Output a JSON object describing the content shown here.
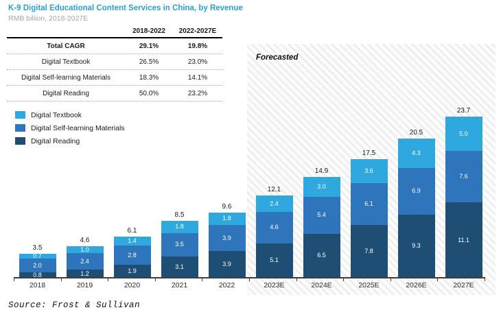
{
  "header": {
    "title": "K-9 Digital Educational Content Services in China, by Revenue",
    "subtitle": "RMB billion, 2018-2027E"
  },
  "cagr_table": {
    "columns": [
      "2018-2022",
      "2022-2027E"
    ],
    "rows": [
      {
        "label": "Total CAGR",
        "values": [
          "29.1%",
          "19.8%"
        ],
        "bold": true
      },
      {
        "label": "Digital Textbook",
        "values": [
          "26.5%",
          "23.0%"
        ],
        "bold": false
      },
      {
        "label": "Digital Self-learning Materials",
        "values": [
          "18.3%",
          "14.1%"
        ],
        "bold": false
      },
      {
        "label": "Digital Reading",
        "values": [
          "50.0%",
          "23.2%"
        ],
        "bold": false
      }
    ]
  },
  "legend": [
    {
      "label": "Digital Textbook",
      "color": "#2fa8df"
    },
    {
      "label": "Digital Self-learning Materials",
      "color": "#2e75bc"
    },
    {
      "label": "Digital Reading",
      "color": "#1f4e74"
    }
  ],
  "forecast_label": "Forecasted",
  "source": "Source: Frost & Sullivan",
  "colors": {
    "title_accent": "#29a0d8",
    "textbook": "#2fa8df",
    "self_learning": "#2e75bc",
    "reading": "#1f4e74",
    "axis": "#3d3d3d"
  },
  "chart_data": {
    "type": "bar",
    "stacked": true,
    "title": "K-9 Digital Educational Content Services in China, by Revenue",
    "unit": "RMB billion",
    "categories": [
      "2018",
      "2019",
      "2020",
      "2021",
      "2022",
      "2023E",
      "2024E",
      "2025E",
      "2026E",
      "2027E"
    ],
    "series": [
      {
        "name": "Digital Reading",
        "color": "#1f4e74",
        "values": [
          0.8,
          1.2,
          1.9,
          3.1,
          3.9,
          5.1,
          6.5,
          7.8,
          9.3,
          11.1
        ]
      },
      {
        "name": "Digital Self-learning Materials",
        "color": "#2e75bc",
        "values": [
          2.0,
          2.4,
          2.8,
          3.5,
          3.9,
          4.6,
          5.4,
          6.1,
          6.9,
          7.6
        ]
      },
      {
        "name": "Digital Textbook",
        "color": "#2fa8df",
        "values": [
          0.7,
          1.0,
          1.4,
          1.8,
          1.8,
          2.4,
          3.0,
          3.6,
          4.3,
          5.0
        ]
      }
    ],
    "totals": [
      3.5,
      4.6,
      6.1,
      8.5,
      9.6,
      12.1,
      14.9,
      17.5,
      20.5,
      23.7
    ],
    "forecast_from_index": 5,
    "forecast_annotation": "Forecasted",
    "ylim": [
      0,
      25
    ],
    "grid": false,
    "legend_position": "left-middle",
    "value_labels": true
  }
}
